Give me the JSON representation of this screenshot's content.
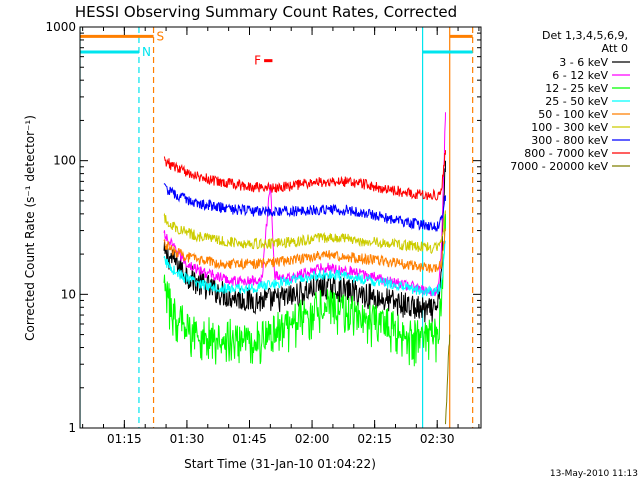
{
  "chart_data": {
    "type": "line",
    "title": "HESSI Observing Summary Count Rates, Corrected",
    "xlabel": "Start Time (31-Jan-10 01:04:22)",
    "ylabel": "Corrected Count Rate (s⁻¹ detector⁻¹)",
    "y_scale": "log",
    "ylim": [
      1,
      1000
    ],
    "xlim": [
      "01:04:22",
      "02:40:30"
    ],
    "x_ticks": [
      "01:15",
      "01:30",
      "01:45",
      "02:00",
      "02:15",
      "02:30"
    ],
    "y_ticks": [
      "1",
      "10",
      "100",
      "1000"
    ],
    "legend_header": [
      "Det 1,3,4,5,6,9,",
      "Att 0"
    ],
    "legend_placement": "right, outside plot",
    "footer_date": "13-May-2010 11:13",
    "flags": [
      {
        "label": "S",
        "color": "#ff7f00",
        "start": "01:04:22",
        "end": "01:22:00",
        "level_cps": 850
      },
      {
        "label": "S",
        "color": "#ff7f00",
        "start": "02:33:00",
        "end": "02:38:30",
        "level_cps": 850
      },
      {
        "label": "N",
        "color": "#00e5ee",
        "start": "01:04:22",
        "end": "01:18:30",
        "level_cps": 650
      },
      {
        "label": "N",
        "color": "#00e5ee",
        "start": "02:26:30",
        "end": "02:38:30",
        "level_cps": 650
      },
      {
        "label": "F",
        "color": "#ff0000",
        "start": "01:48:30",
        "end": "01:50:30",
        "level_cps": 560
      }
    ],
    "vertical_markers": [
      {
        "time": "01:04:22",
        "color": "#00e5ee",
        "style": "solid"
      },
      {
        "time": "01:18:30",
        "color": "#00e5ee",
        "style": "dashed"
      },
      {
        "time": "01:22:00",
        "color": "#ff7f00",
        "style": "dashed"
      },
      {
        "time": "02:26:30",
        "color": "#00e5ee",
        "style": "solid"
      },
      {
        "time": "02:33:00",
        "color": "#ff7f00",
        "style": "solid"
      },
      {
        "time": "02:38:30",
        "color": "#ff7f00",
        "style": "dashed"
      }
    ],
    "series": [
      {
        "name": "3 - 6 keV",
        "color": "#000000",
        "x": [
          "01:24:30",
          "01:27:00",
          "01:30:00",
          "01:33:00",
          "01:36:00",
          "01:39:00",
          "01:42:00",
          "01:45:00",
          "01:48:00",
          "01:51:00",
          "01:54:00",
          "01:57:00",
          "02:00:00",
          "02:03:00",
          "02:06:00",
          "02:09:00",
          "02:12:00",
          "02:15:00",
          "02:18:00",
          "02:21:00",
          "02:24:00",
          "02:27:00",
          "02:30:00",
          "02:31:00",
          "02:32:00"
        ],
        "y": [
          20,
          18,
          14,
          12,
          11,
          10,
          9.5,
          9,
          9,
          9,
          9.5,
          10,
          11,
          11.5,
          11,
          10.5,
          10,
          9.5,
          9,
          8.5,
          8,
          7.5,
          7.5,
          15,
          100
        ]
      },
      {
        "name": "6 - 12 keV",
        "color": "#ff00ff",
        "x": [
          "01:24:30",
          "01:27:00",
          "01:30:00",
          "01:33:00",
          "01:36:00",
          "01:39:00",
          "01:42:00",
          "01:45:00",
          "01:48:00",
          "01:50:00",
          "01:51:00",
          "01:54:00",
          "01:57:00",
          "02:00:00",
          "02:03:00",
          "02:06:00",
          "02:09:00",
          "02:12:00",
          "02:15:00",
          "02:18:00",
          "02:21:00",
          "02:24:00",
          "02:27:00",
          "02:30:00",
          "02:31:00",
          "02:32:00"
        ],
        "y": [
          28,
          22,
          17,
          15,
          14,
          13,
          12.5,
          12.5,
          13,
          70,
          14,
          13,
          14,
          15,
          16,
          15.5,
          15,
          14,
          13.5,
          12.5,
          12,
          11.5,
          10.5,
          10.5,
          20,
          230
        ]
      },
      {
        "name": "12 - 25 keV",
        "color": "#00ff00",
        "x": [
          "01:24:30",
          "01:27:00",
          "01:30:00",
          "01:33:00",
          "01:36:00",
          "01:39:00",
          "01:42:00",
          "01:45:00",
          "01:48:00",
          "01:51:00",
          "01:54:00",
          "01:57:00",
          "02:00:00",
          "02:03:00",
          "02:06:00",
          "02:09:00",
          "02:12:00",
          "02:15:00",
          "02:18:00",
          "02:21:00",
          "02:24:00",
          "02:27:00",
          "02:30:00",
          "02:31:00",
          "02:32:00"
        ],
        "y": [
          11,
          8,
          6,
          5.5,
          5,
          5,
          5,
          5,
          5,
          5.5,
          6,
          7,
          8,
          8.5,
          8,
          7.5,
          7,
          6.5,
          6,
          5.5,
          5,
          5,
          5,
          8,
          40
        ]
      },
      {
        "name": "25 - 50 keV",
        "color": "#00ffff",
        "x": [
          "01:24:30",
          "01:27:00",
          "01:30:00",
          "01:33:00",
          "01:36:00",
          "01:39:00",
          "01:42:00",
          "01:45:00",
          "01:48:00",
          "01:51:00",
          "01:54:00",
          "01:57:00",
          "02:00:00",
          "02:03:00",
          "02:06:00",
          "02:09:00",
          "02:12:00",
          "02:15:00",
          "02:18:00",
          "02:21:00",
          "02:24:00",
          "02:27:00",
          "02:30:00",
          "02:31:00",
          "02:32:00"
        ],
        "y": [
          18,
          15,
          13,
          12,
          11.5,
          11,
          11,
          11,
          11.5,
          12,
          12.5,
          13,
          13.5,
          14,
          14,
          13.5,
          13,
          12.5,
          12,
          11.5,
          11,
          10.5,
          10.5,
          12,
          25
        ]
      },
      {
        "name": "50 - 100 keV",
        "color": "#ff7f00",
        "x": [
          "01:24:30",
          "01:27:00",
          "01:30:00",
          "01:33:00",
          "01:36:00",
          "01:39:00",
          "01:42:00",
          "01:45:00",
          "01:48:00",
          "01:51:00",
          "01:54:00",
          "01:57:00",
          "02:00:00",
          "02:03:00",
          "02:06:00",
          "02:09:00",
          "02:12:00",
          "02:15:00",
          "02:18:00",
          "02:21:00",
          "02:24:00",
          "02:27:00",
          "02:30:00",
          "02:31:00",
          "02:32:00"
        ],
        "y": [
          24,
          21,
          19,
          18,
          17.5,
          17,
          17,
          17,
          17,
          17.5,
          18,
          18.5,
          19,
          19.5,
          19.5,
          19,
          18.5,
          18,
          17.5,
          17,
          16.5,
          16,
          15.5,
          17,
          30
        ]
      },
      {
        "name": "100 - 300 keV",
        "color": "#cccc00",
        "x": [
          "01:24:30",
          "01:27:00",
          "01:30:00",
          "01:33:00",
          "01:36:00",
          "01:39:00",
          "01:42:00",
          "01:45:00",
          "01:48:00",
          "01:51:00",
          "01:54:00",
          "01:57:00",
          "02:00:00",
          "02:03:00",
          "02:06:00",
          "02:09:00",
          "02:12:00",
          "02:15:00",
          "02:18:00",
          "02:21:00",
          "02:24:00",
          "02:27:00",
          "02:30:00",
          "02:31:00",
          "02:32:00"
        ],
        "y": [
          37,
          32,
          29,
          27,
          26,
          25,
          24.5,
          24,
          24,
          24,
          24.5,
          25,
          26,
          26.5,
          26.5,
          26,
          25,
          24.5,
          24,
          23.5,
          23,
          22.5,
          22,
          24,
          40
        ]
      },
      {
        "name": "300 - 800 keV",
        "color": "#0000ff",
        "x": [
          "01:24:30",
          "01:27:00",
          "01:30:00",
          "01:33:00",
          "01:36:00",
          "01:39:00",
          "01:42:00",
          "01:45:00",
          "01:48:00",
          "01:51:00",
          "01:54:00",
          "01:57:00",
          "02:00:00",
          "02:03:00",
          "02:06:00",
          "02:09:00",
          "02:12:00",
          "02:15:00",
          "02:18:00",
          "02:21:00",
          "02:24:00",
          "02:27:00",
          "02:30:00",
          "02:31:00",
          "02:32:00"
        ],
        "y": [
          63,
          56,
          51,
          48,
          46,
          44,
          43,
          42,
          41.5,
          41.5,
          42,
          42,
          42.5,
          43,
          43,
          42.5,
          41,
          39,
          37,
          35,
          34,
          33,
          32,
          35,
          55
        ]
      },
      {
        "name": "800 - 7000 keV",
        "color": "#ff0000",
        "x": [
          "01:24:30",
          "01:27:00",
          "01:30:00",
          "01:33:00",
          "01:36:00",
          "01:39:00",
          "01:42:00",
          "01:45:00",
          "01:48:00",
          "01:51:00",
          "01:54:00",
          "01:57:00",
          "02:00:00",
          "02:03:00",
          "02:06:00",
          "02:09:00",
          "02:12:00",
          "02:15:00",
          "02:18:00",
          "02:21:00",
          "02:24:00",
          "02:27:00",
          "02:30:00",
          "02:31:00",
          "02:32:00"
        ],
        "y": [
          100,
          90,
          82,
          76,
          72,
          68,
          66,
          64,
          63,
          63,
          64,
          66,
          68,
          70,
          70,
          69,
          67,
          64,
          61,
          59,
          57,
          55,
          55,
          60,
          120
        ]
      },
      {
        "name": "7000 - 20000 keV",
        "color": "#7f7f00",
        "x": [
          "02:32:00",
          "02:32:30",
          "02:33:00"
        ],
        "y": [
          1,
          2.5,
          5
        ]
      }
    ]
  }
}
